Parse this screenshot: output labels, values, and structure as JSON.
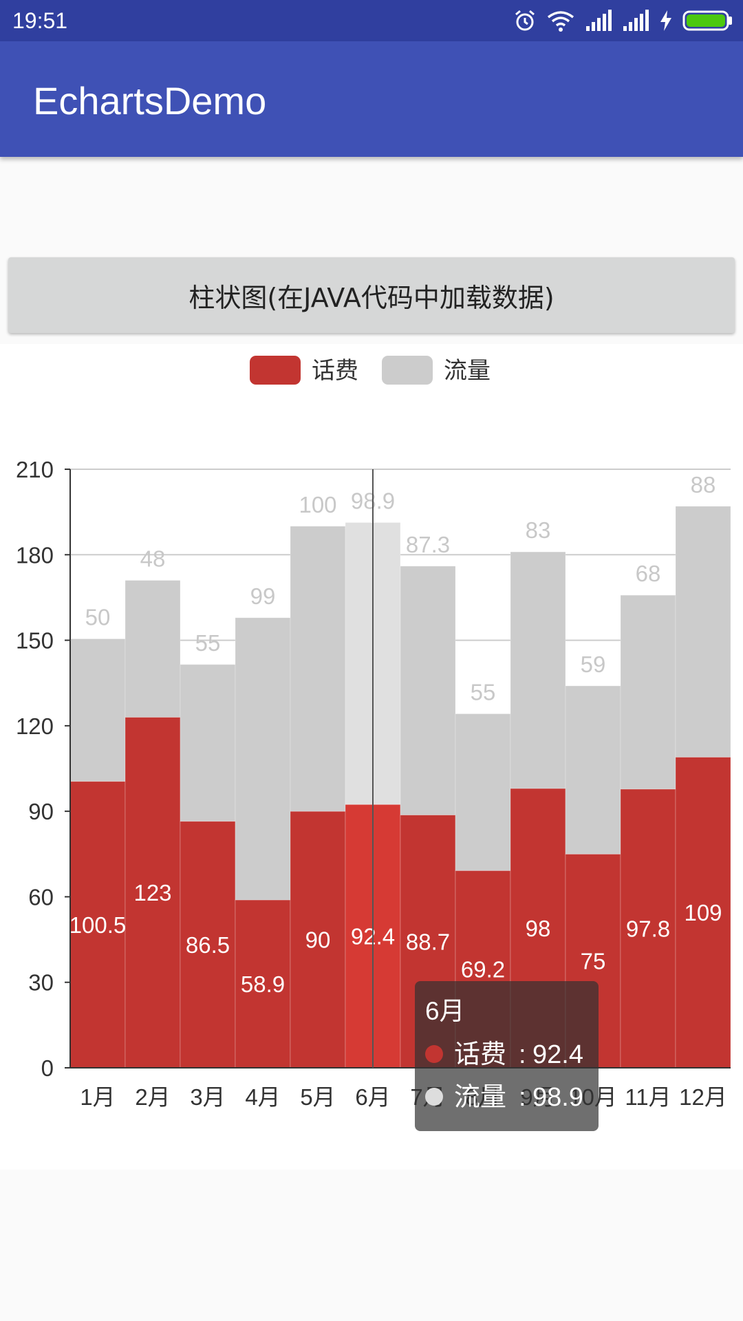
{
  "status_bar": {
    "time": "19:51",
    "icons": [
      "alarm-icon",
      "wifi-icon",
      "signal-icon",
      "signal-icon",
      "charging-icon",
      "battery-icon"
    ]
  },
  "app_bar": {
    "title": "EchartsDemo"
  },
  "load_button": {
    "label": "柱状图(在JAVA代码中加载数据)"
  },
  "chart_data": {
    "type": "bar",
    "stacked": true,
    "categories": [
      "1月",
      "2月",
      "3月",
      "4月",
      "5月",
      "6月",
      "7月",
      "8月",
      "9月",
      "10月",
      "11月",
      "12月"
    ],
    "series": [
      {
        "name": "话费",
        "values": [
          100.5,
          123,
          86.5,
          58.9,
          90,
          92.4,
          88.7,
          69.2,
          98,
          75,
          97.8,
          109
        ],
        "color": "#C23531"
      },
      {
        "name": "流量",
        "values": [
          50,
          48,
          55,
          99,
          100,
          98.9,
          87.3,
          55,
          83,
          59,
          68,
          88
        ],
        "color": "#CCCCCC"
      }
    ],
    "yticks": [
      0,
      30,
      60,
      90,
      120,
      150,
      180,
      210
    ],
    "ylim": [
      0,
      210
    ],
    "grid": true,
    "legend_position": "top-center",
    "highlighted_index": 5,
    "tooltip": {
      "title": "6月",
      "items": [
        {
          "name": "话费",
          "value": "92.4",
          "color": "#C23531"
        },
        {
          "name": "流量",
          "value": "98.9",
          "color": "#DDDDDD"
        }
      ]
    }
  }
}
